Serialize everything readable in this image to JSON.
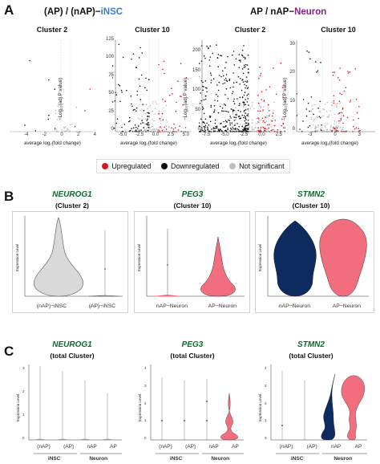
{
  "panel_a": {
    "letter": "A",
    "left_header": {
      "prefix": "(AP) / (nAP)−",
      "accent": "iNSC",
      "accent_color": "#3a7bd5"
    },
    "right_header": {
      "prefix": "AP / nAP−",
      "accent": "Neuron",
      "accent_color": "#8b1e8b"
    },
    "y_axis_label": "−Log₁₀(adj.P value)",
    "x_axis_label": "average log₂(fold change)",
    "plots": [
      {
        "title": "Cluster 2",
        "xticks": [
          "-4",
          "-2",
          "0",
          "2",
          "4"
        ],
        "yticks": []
      },
      {
        "title": "Cluster 10",
        "xticks": [
          "-5.0",
          "-2.5",
          "0.0",
          "2.5",
          "5.0"
        ],
        "yticks": [
          "0",
          "25",
          "50",
          "75",
          "100",
          "125"
        ]
      },
      {
        "title": "Cluster 2",
        "xticks": [
          "-7.5",
          "-5.0",
          "-2.5",
          "0.0",
          "2.5"
        ],
        "yticks": [
          "0",
          "50",
          "100",
          "150",
          "200"
        ]
      },
      {
        "title": "Cluster 10",
        "xticks": [
          "-3",
          "0",
          "3"
        ],
        "yticks": [
          "0",
          "10",
          "20",
          "30"
        ]
      }
    ],
    "legend": [
      {
        "label": "Upregulated",
        "color": "#d7191c"
      },
      {
        "label": "Downregulated",
        "color": "#111111"
      },
      {
        "label": "Not significant",
        "color": "#bdbdbd"
      }
    ]
  },
  "panel_b": {
    "letter": "B",
    "y_axis_label": "Expression Level",
    "plots": [
      {
        "gene": "NEUROG1",
        "subtitle": "(Cluster 2)",
        "groups": [
          "(nAP)−iNSC",
          "(AP)−iNSC"
        ]
      },
      {
        "gene": "PEG3",
        "subtitle": "(Cluster 10)",
        "groups": [
          "nAP−Neuron",
          "AP−Neuron"
        ]
      },
      {
        "gene": "STMN2",
        "subtitle": "(Cluster 10)",
        "groups": [
          "nAP−Neuron",
          "AP−Neuron"
        ]
      }
    ]
  },
  "panel_c": {
    "letter": "C",
    "y_axis_label": "Expression Level",
    "plots": [
      {
        "gene": "NEUROG1",
        "subtitle": "(total Cluster)",
        "groups": [
          "(nAP)",
          "(AP)",
          "nAP",
          "AP"
        ],
        "yticks": [
          "0",
          "1",
          "2",
          "3"
        ]
      },
      {
        "gene": "PEG3",
        "subtitle": "(total Cluster)",
        "groups": [
          "(nAP)",
          "(AP)",
          "nAP",
          "AP"
        ],
        "yticks": [
          "0",
          "1",
          "2",
          "3",
          "4"
        ]
      },
      {
        "gene": "STMN2",
        "subtitle": "(total Cluster)",
        "groups": [
          "(nAP)",
          "(AP)",
          "nAP",
          "AP"
        ],
        "yticks": [
          "0",
          "1",
          "2",
          "3",
          "4"
        ]
      }
    ],
    "bracket_labels": [
      "iNSC",
      "Neuron"
    ]
  },
  "colors": {
    "grey": "#d9d9d9",
    "red": "#f26d7d",
    "navy": "#0d2b5e",
    "gene_green": "#0b6b2c"
  }
}
